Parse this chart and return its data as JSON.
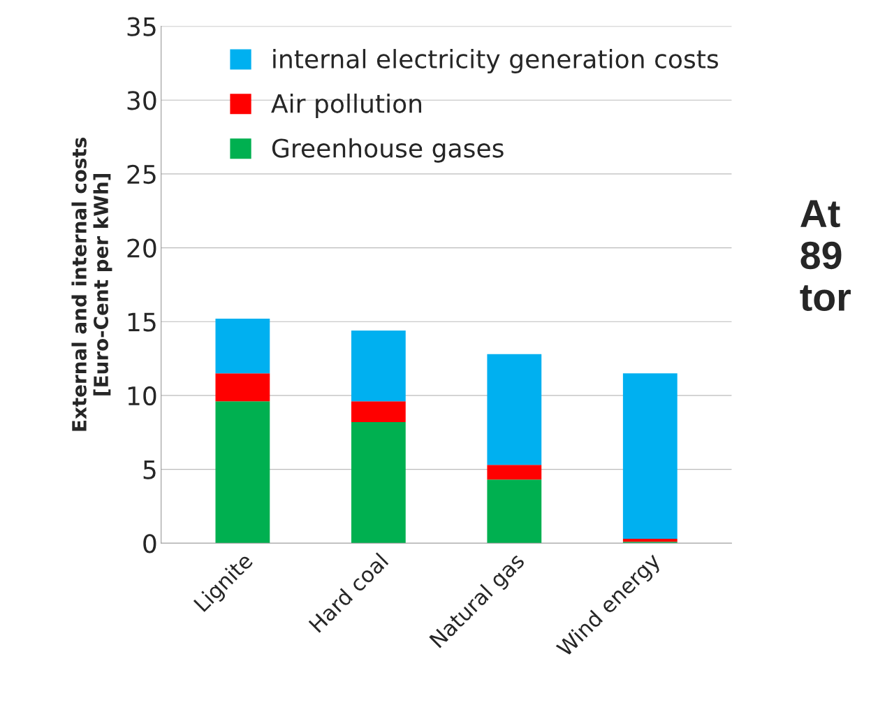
{
  "chart_data": {
    "type": "bar",
    "stacked": true,
    "ylabel": "External and internal costs\n[Euro-Cent per kWh]",
    "categories": [
      "Lignite",
      "Hard coal",
      "Natural gas",
      "Wind energy"
    ],
    "series": [
      {
        "name": "Greenhouse gases",
        "color": "#00b050",
        "values": [
          9.6,
          8.2,
          4.3,
          0.1
        ]
      },
      {
        "name": "Air pollution",
        "color": "#ff0000",
        "values": [
          1.9,
          1.4,
          1.0,
          0.2
        ]
      },
      {
        "name": "internal electricity generation costs",
        "color": "#00b0f0",
        "values": [
          3.7,
          4.8,
          7.5,
          11.2
        ]
      }
    ],
    "ylim": [
      0,
      35
    ],
    "yticks": [
      0,
      5,
      10,
      15,
      20,
      25,
      30,
      35
    ],
    "grid": "y",
    "legend": "top",
    "annotations": [
      "At\n89\ntor"
    ]
  }
}
